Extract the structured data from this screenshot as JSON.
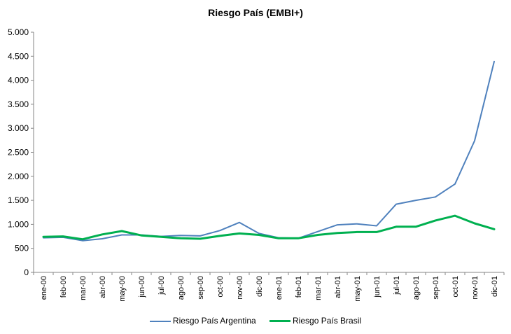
{
  "chart_data": {
    "type": "line",
    "title": "Riesgo País (EMBI+)",
    "xlabel": "",
    "ylabel": "",
    "categories": [
      "ene-00",
      "feb-00",
      "mar-00",
      "abr-00",
      "may-00",
      "jun-00",
      "jul-00",
      "ago-00",
      "sep-00",
      "oct-00",
      "nov-00",
      "dic-00",
      "ene-01",
      "feb-01",
      "mar-01",
      "abr-01",
      "may-01",
      "jun-01",
      "jul-01",
      "ago-01",
      "sep-01",
      "oct-01",
      "nov-01",
      "dic-01"
    ],
    "ylim": [
      0,
      5000
    ],
    "yticks": [
      0,
      500,
      1000,
      1500,
      2000,
      2500,
      3000,
      3500,
      4000,
      4500,
      5000
    ],
    "ytick_labels": [
      "0",
      "500",
      "1.000",
      "1.500",
      "2.000",
      "2.500",
      "3.000",
      "3.500",
      "4.000",
      "4.500",
      "5.000"
    ],
    "grid": false,
    "legend_position": "bottom",
    "series": [
      {
        "name": "Riesgo País Argentina",
        "color": "#4F81BD",
        "values": [
          720,
          730,
          660,
          700,
          780,
          780,
          750,
          770,
          760,
          870,
          1040,
          810,
          720,
          710,
          850,
          990,
          1010,
          970,
          1420,
          1500,
          1570,
          1840,
          2740,
          4390
        ]
      },
      {
        "name": "Riesgo País Brasil",
        "color": "#00B050",
        "values": [
          740,
          750,
          690,
          790,
          860,
          770,
          740,
          710,
          700,
          760,
          810,
          780,
          710,
          710,
          780,
          820,
          840,
          840,
          950,
          950,
          1080,
          1180,
          1020,
          900
        ]
      }
    ]
  }
}
